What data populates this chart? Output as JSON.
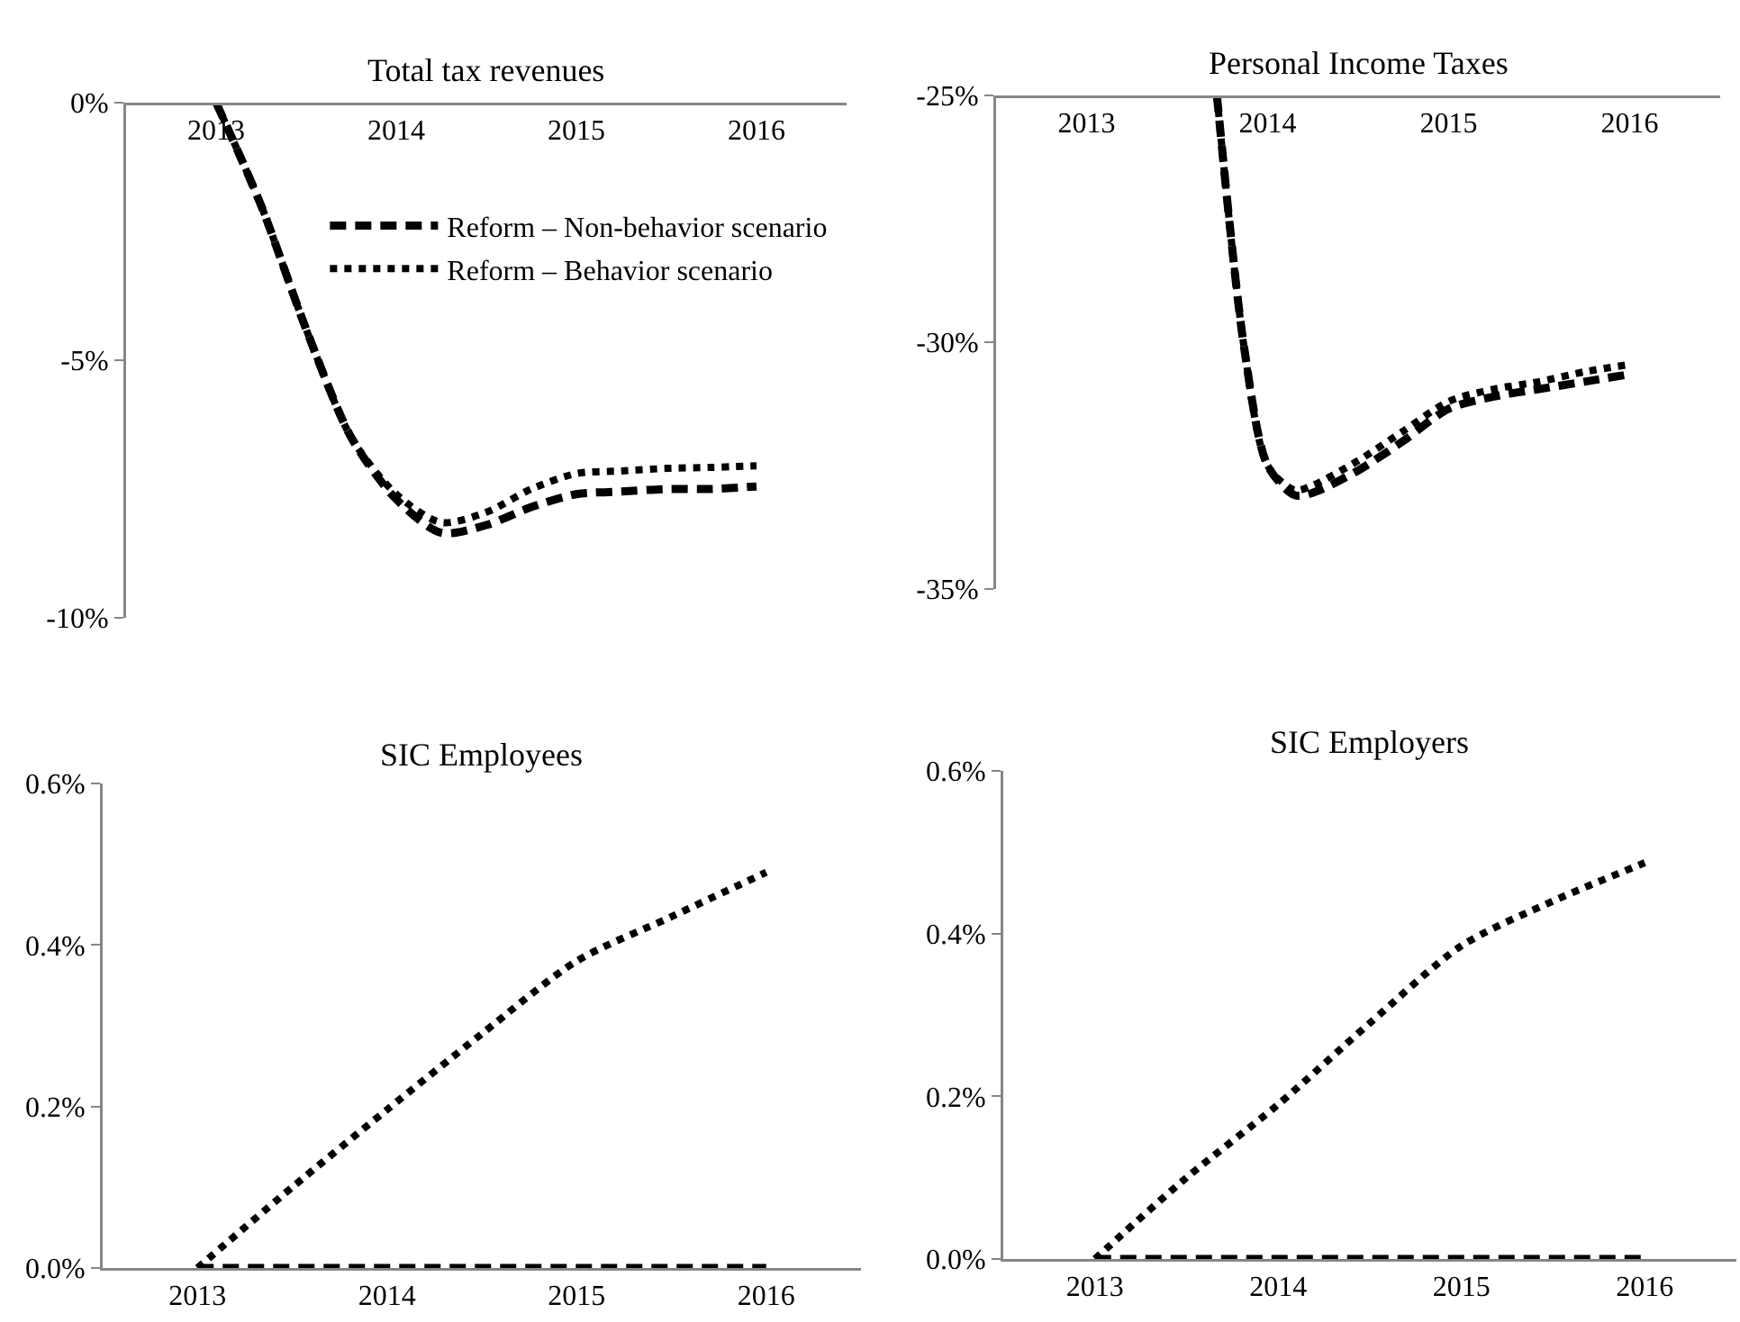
{
  "chart_data": [
    {
      "type": "line",
      "title": "Total tax revenues",
      "xlim": [
        2012.5,
        2016.5
      ],
      "xticks": [
        2013,
        2014,
        2015,
        2016
      ],
      "ylim": [
        -10,
        0
      ],
      "yticks": [
        {
          "value": 0,
          "label": "0%"
        },
        {
          "value": -5,
          "label": "-5%"
        },
        {
          "value": -10,
          "label": "-10%"
        }
      ],
      "grid": false,
      "legend": "top right",
      "series": [
        {
          "name": "Reform – Non-behavior scenario",
          "color": "#000000",
          "line_style": "dashed",
          "x": [
            2013,
            2013.25,
            2013.5,
            2013.75,
            2014,
            2014.25,
            2014.5,
            2014.75,
            2015,
            2015.25,
            2015.5,
            2015.75,
            2016
          ],
          "values": [
            0,
            -2.0,
            -4.4,
            -6.5,
            -7.7,
            -8.35,
            -8.2,
            -7.85,
            -7.6,
            -7.55,
            -7.5,
            -7.5,
            -7.45
          ]
        },
        {
          "name": "Reform – Behavior scenario",
          "color": "#000000",
          "line_style": "dotted",
          "x": [
            2013,
            2013.25,
            2013.5,
            2013.75,
            2014,
            2014.25,
            2014.5,
            2014.75,
            2015,
            2015.25,
            2015.5,
            2015.75,
            2016
          ],
          "values": [
            0,
            -2.0,
            -4.4,
            -6.5,
            -7.6,
            -8.15,
            -7.95,
            -7.5,
            -7.2,
            -7.15,
            -7.1,
            -7.08,
            -7.05
          ]
        }
      ]
    },
    {
      "type": "line",
      "title": "Personal Income Taxes",
      "xlim": [
        2012.5,
        2016.5
      ],
      "xticks": [
        2013,
        2014,
        2015,
        2016
      ],
      "ylim": [
        -35,
        -25
      ],
      "yticks": [
        {
          "value": -25,
          "label": "-25%"
        },
        {
          "value": -30,
          "label": "-30%"
        },
        {
          "value": -35,
          "label": "-35%"
        }
      ],
      "grid": false,
      "series": [
        {
          "color": "#000000",
          "line_style": "dashed",
          "x": [
            2013.72,
            2013.87,
            2014,
            2014.15,
            2014.25,
            2014.5,
            2014.75,
            2015,
            2015.25,
            2015.5,
            2015.75,
            2016
          ],
          "values": [
            -25,
            -30.1,
            -32.5,
            -33.1,
            -33.05,
            -32.6,
            -32.0,
            -31.35,
            -31.1,
            -30.95,
            -30.8,
            -30.65
          ]
        },
        {
          "color": "#000000",
          "line_style": "dotted",
          "x": [
            2013.72,
            2013.87,
            2014,
            2014.15,
            2014.25,
            2014.5,
            2014.75,
            2015,
            2015.25,
            2015.5,
            2015.75,
            2016
          ],
          "values": [
            -25,
            -30.1,
            -32.5,
            -33.0,
            -32.9,
            -32.4,
            -31.8,
            -31.2,
            -30.95,
            -30.8,
            -30.6,
            -30.45
          ]
        }
      ]
    },
    {
      "type": "line",
      "title": "SIC Employees",
      "xlim": [
        2012.5,
        2016.5
      ],
      "xticks": [
        2013,
        2014,
        2015,
        2016
      ],
      "ylim": [
        0,
        0.6
      ],
      "yticks": [
        {
          "value": 0,
          "label": "0.0%"
        },
        {
          "value": 0.2,
          "label": "0.2%"
        },
        {
          "value": 0.4,
          "label": "0.4%"
        },
        {
          "value": 0.6,
          "label": "0.6%"
        }
      ],
      "grid": false,
      "series": [
        {
          "color": "#000000",
          "line_style": "dashed",
          "x": [
            2013,
            2016
          ],
          "values": [
            0,
            0
          ]
        },
        {
          "color": "#000000",
          "line_style": "dotted",
          "x": [
            2013,
            2013.5,
            2014,
            2014.5,
            2015,
            2015.5,
            2016
          ],
          "values": [
            0,
            0.1,
            0.196,
            0.29,
            0.38,
            0.435,
            0.49
          ]
        }
      ]
    },
    {
      "type": "line",
      "title": "SIC Employers",
      "xlim": [
        2012.5,
        2016.5
      ],
      "xticks": [
        2013,
        2014,
        2015,
        2016
      ],
      "ylim": [
        0,
        0.6
      ],
      "yticks": [
        {
          "value": 0,
          "label": "0.0%"
        },
        {
          "value": 0.2,
          "label": "0.2%"
        },
        {
          "value": 0.4,
          "label": "0.4%"
        },
        {
          "value": 0.6,
          "label": "0.6%"
        }
      ],
      "grid": false,
      "series": [
        {
          "color": "#000000",
          "line_style": "dashed",
          "x": [
            2013,
            2016
          ],
          "values": [
            0,
            0
          ]
        },
        {
          "color": "#000000",
          "line_style": "dotted",
          "x": [
            2013,
            2013.5,
            2014,
            2014.5,
            2015,
            2015.5,
            2016
          ],
          "values": [
            0,
            0.1,
            0.19,
            0.29,
            0.385,
            0.44,
            0.487
          ]
        }
      ]
    }
  ]
}
